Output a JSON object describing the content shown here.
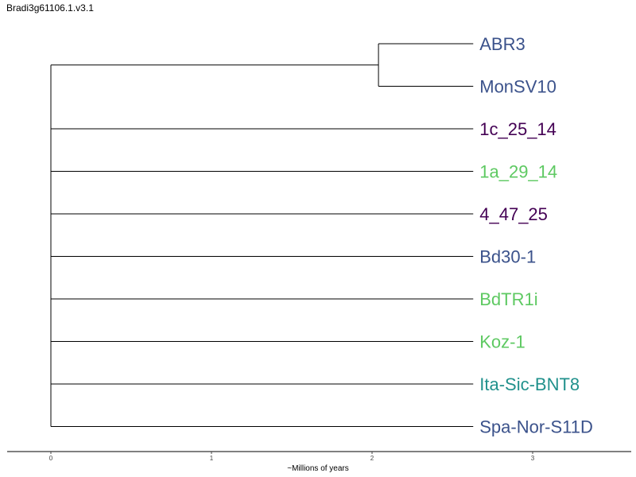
{
  "title": "Bradi3g61106.1.v3.1",
  "axis": {
    "label": "~Millions of years",
    "ticks": [
      "0",
      "1",
      "2",
      "3"
    ]
  },
  "leaves": [
    {
      "label": "ABR3",
      "color": "#3b528b"
    },
    {
      "label": "MonSV10",
      "color": "#3b528b"
    },
    {
      "label": "1c_25_14",
      "color": "#440154"
    },
    {
      "label": "1a_29_14",
      "color": "#5ec962"
    },
    {
      "label": "4_47_25",
      "color": "#440154"
    },
    {
      "label": "Bd30-1",
      "color": "#3b528b"
    },
    {
      "label": "BdTR1i",
      "color": "#5ec962"
    },
    {
      "label": "Koz-1",
      "color": "#5ec962"
    },
    {
      "label": "Ita-Sic-BNT8",
      "color": "#21918c"
    },
    {
      "label": "Spa-Nor-S11D",
      "color": "#3b528b"
    }
  ],
  "clade": {
    "members": [
      "ABR3",
      "MonSV10"
    ],
    "node_age": 2.04
  },
  "root_age": 0,
  "tip_age": 2.63
}
